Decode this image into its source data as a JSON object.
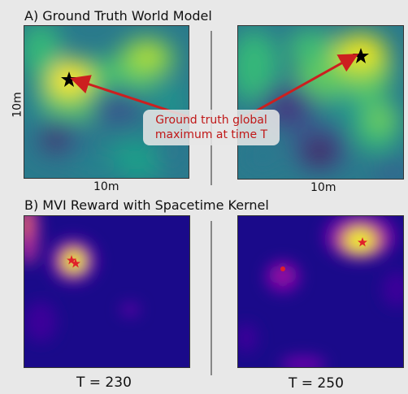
{
  "sections": {
    "a_title": "A) Ground Truth World Model",
    "b_title": "B) MVI Reward with Spacetime Kernel"
  },
  "axes": {
    "x_label": "10m",
    "y_label": "10m"
  },
  "annotation": {
    "line1": "Ground truth global",
    "line2": "maximum at time T"
  },
  "timesteps": {
    "left": "T = 230",
    "right": "T = 250"
  },
  "colors": {
    "background": "#e8e8e8",
    "annotation_text": "#c01818",
    "arrow": "#cc1f1f",
    "star_world": "#000000",
    "star_reward": "#e0202a"
  },
  "colormaps": {
    "world_model": "viridis",
    "reward": "plasma"
  }
}
